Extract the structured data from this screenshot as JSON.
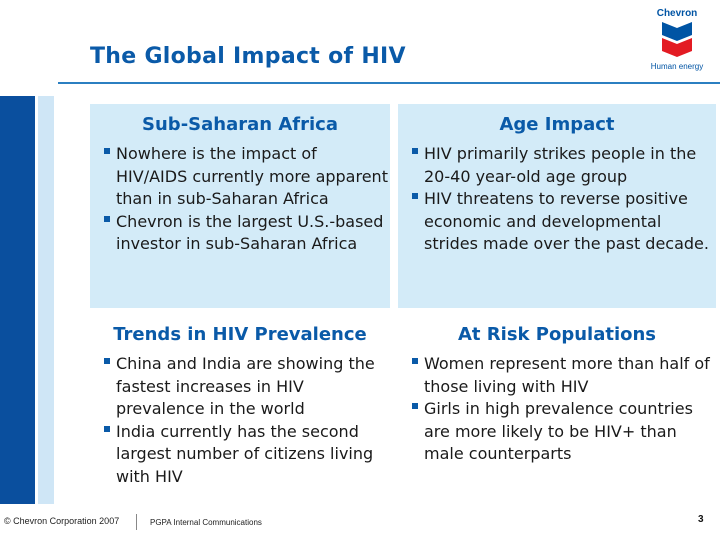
{
  "slide": {
    "title": "The Global Impact of HIV",
    "logo": {
      "brand": "Chevron",
      "tagline": "Human energy"
    },
    "sections": [
      {
        "heading": "Sub-Saharan Africa",
        "bullets": [
          "Nowhere is the impact of HIV/AIDS currently more apparent than in sub-Saharan Africa",
          "Chevron is the largest U.S.-based investor in sub-Saharan Africa"
        ]
      },
      {
        "heading": "Age Impact",
        "bullets": [
          "HIV primarily strikes people in the 20-40 year-old age group",
          "HIV threatens to reverse positive economic and developmental strides made over the past decade."
        ]
      },
      {
        "heading": "Trends in HIV Prevalence",
        "bullets": [
          "China and India are showing the fastest increases in HIV prevalence in the world",
          "India currently has the second largest number of citizens living with HIV"
        ]
      },
      {
        "heading": "At Risk Populations",
        "bullets": [
          "Women represent more than half of those living with HIV",
          "Girls in high prevalence countries are more likely to be HIV+ than male counterparts"
        ]
      }
    ],
    "footer": {
      "copyright": "© Chevron Corporation 2007",
      "department": "PGPA Internal Communications",
      "page_number": "3"
    }
  },
  "colors": {
    "accent_blue": "#0a5aa8",
    "dark_blue": "#0a4f9e",
    "panel_light_blue": "#d3ebf8",
    "logo_red": "#e31b23"
  }
}
